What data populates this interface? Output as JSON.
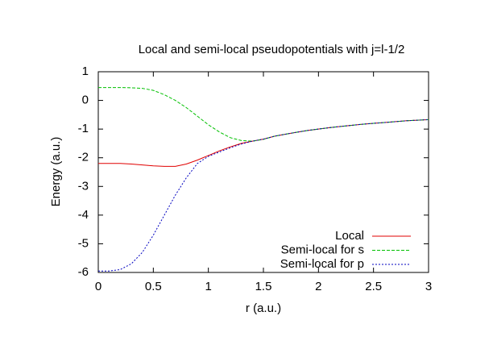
{
  "chart_data": {
    "type": "line",
    "title": "Local and semi-local pseudopotentials with j=l-1/2",
    "x_label": "r (a.u.)",
    "y_label": "Energy (a.u.)",
    "x": [
      0,
      0.1,
      0.2,
      0.3,
      0.4,
      0.5,
      0.6,
      0.7,
      0.8,
      0.9,
      1.0,
      1.1,
      1.2,
      1.3,
      1.4,
      1.5,
      1.6,
      1.7,
      1.8,
      1.9,
      2.0,
      2.1,
      2.2,
      2.3,
      2.4,
      2.5,
      2.6,
      2.7,
      2.8,
      2.9,
      3.0
    ],
    "series": [
      {
        "name": "Local",
        "color": "#e00000",
        "dash": "",
        "values": [
          -2.2,
          -2.2,
          -2.2,
          -2.22,
          -2.25,
          -2.28,
          -2.3,
          -2.3,
          -2.22,
          -2.08,
          -1.92,
          -1.76,
          -1.62,
          -1.5,
          -1.42,
          -1.35,
          -1.25,
          -1.18,
          -1.11,
          -1.05,
          -1.0,
          -0.95,
          -0.91,
          -0.87,
          -0.83,
          -0.8,
          -0.77,
          -0.74,
          -0.71,
          -0.69,
          -0.67
        ]
      },
      {
        "name": "Semi-local for s",
        "color": "#00c000",
        "dash": "4 2",
        "values": [
          0.45,
          0.45,
          0.45,
          0.44,
          0.42,
          0.35,
          0.2,
          0.0,
          -0.25,
          -0.55,
          -0.85,
          -1.1,
          -1.3,
          -1.4,
          -1.42,
          -1.36,
          -1.25,
          -1.18,
          -1.11,
          -1.05,
          -1.0,
          -0.95,
          -0.91,
          -0.87,
          -0.83,
          -0.8,
          -0.77,
          -0.74,
          -0.71,
          -0.69,
          -0.67
        ]
      },
      {
        "name": "Semi-local for p",
        "color": "#0000c0",
        "dash": "2 2",
        "values": [
          -5.95,
          -5.95,
          -5.9,
          -5.7,
          -5.3,
          -4.7,
          -4.0,
          -3.3,
          -2.7,
          -2.2,
          -1.95,
          -1.8,
          -1.65,
          -1.52,
          -1.42,
          -1.35,
          -1.25,
          -1.18,
          -1.11,
          -1.05,
          -1.0,
          -0.95,
          -0.91,
          -0.87,
          -0.83,
          -0.8,
          -0.77,
          -0.74,
          -0.71,
          -0.69,
          -0.67
        ]
      }
    ],
    "xlim": [
      0,
      3
    ],
    "xticks": [
      0,
      0.5,
      1,
      1.5,
      2,
      2.5,
      3
    ],
    "ylim": [
      -6,
      1
    ],
    "yticks": [
      -6,
      -5,
      -4,
      -3,
      -2,
      -1,
      0,
      1
    ],
    "legend": "bottom-right"
  }
}
